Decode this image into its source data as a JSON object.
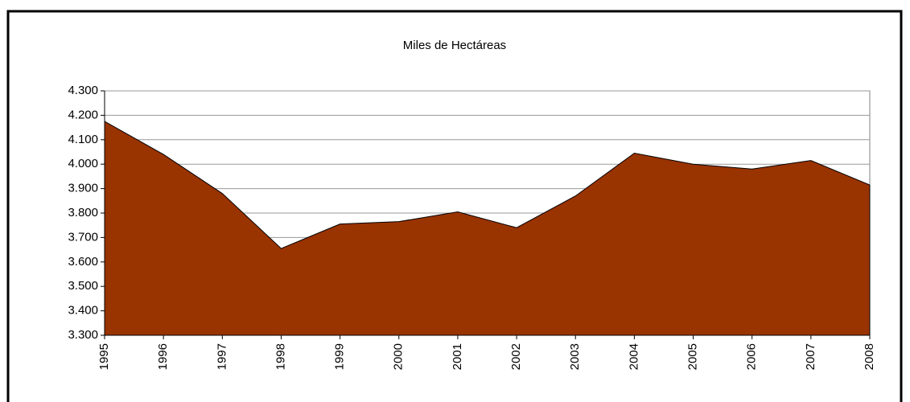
{
  "chart_data": {
    "type": "area",
    "title": "Miles de Hectáreas",
    "categories": [
      "1995",
      "1996",
      "1997",
      "1998",
      "1999",
      "2000",
      "2001",
      "2002",
      "2003",
      "2004",
      "2005",
      "2006",
      "2007",
      "2008"
    ],
    "series": [
      {
        "color": "#993300",
        "values": [
          4175,
          4040,
          3880,
          3655,
          3755,
          3765,
          3805,
          3740,
          3870,
          4045,
          4000,
          3980,
          4015,
          3915
        ]
      }
    ],
    "ylim": [
      3300,
      4300
    ],
    "yticks": [
      {
        "value": 3300,
        "label": "3.300"
      },
      {
        "value": 3400,
        "label": "3.400"
      },
      {
        "value": 3500,
        "label": "3.500"
      },
      {
        "value": 3600,
        "label": "3.600"
      },
      {
        "value": 3700,
        "label": "3.700"
      },
      {
        "value": 3800,
        "label": "3.800"
      },
      {
        "value": 3900,
        "label": "3.900"
      },
      {
        "value": 4000,
        "label": "4.000"
      },
      {
        "value": 4100,
        "label": "4.100"
      },
      {
        "value": 4200,
        "label": "4.200"
      },
      {
        "value": 4300,
        "label": "4.300"
      }
    ],
    "grid": true
  }
}
